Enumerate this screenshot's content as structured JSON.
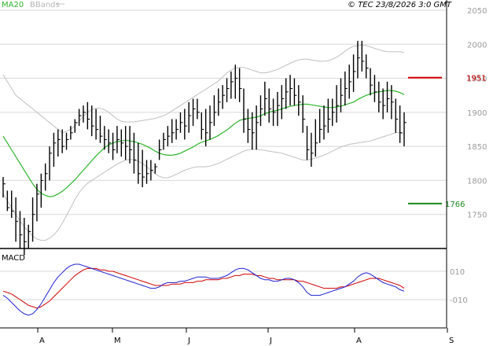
{
  "header": {
    "ma_label": "MA20",
    "bb_label": "BBands",
    "source": "© TEC 23/8/2026 3:0 GMT"
  },
  "colors": {
    "ma": "#2db52d",
    "bbands": "#c0c0c0",
    "price_bar": "#000000",
    "resistance": "#d00000",
    "support": "#1a8a1a",
    "macd_line": "#1f1fd6",
    "signal_line": "#d00000",
    "grid": "#d8d8d8"
  },
  "chart_data": [
    {
      "type": "ohlc",
      "ylim": [
        1700,
        2065
      ],
      "y_ticks": [
        1750,
        1800,
        1850,
        1900,
        1950,
        2000,
        2050
      ],
      "x_tick_labels": [
        "A",
        "M",
        "J",
        "J",
        "A",
        "S"
      ],
      "levels": {
        "resistance": 1951,
        "support": 1766
      },
      "highs": [
        1805,
        1785,
        1785,
        1775,
        1755,
        1745,
        1735,
        1775,
        1795,
        1810,
        1825,
        1850,
        1870,
        1875,
        1875,
        1870,
        1880,
        1890,
        1905,
        1910,
        1915,
        1910,
        1905,
        1895,
        1880,
        1875,
        1870,
        1880,
        1875,
        1880,
        1880,
        1870,
        1855,
        1845,
        1830,
        1830,
        1825,
        1860,
        1870,
        1880,
        1890,
        1890,
        1900,
        1905,
        1915,
        1920,
        1920,
        1900,
        1905,
        1910,
        1925,
        1935,
        1940,
        1950,
        1960,
        1970,
        1965,
        1935,
        1905,
        1900,
        1910,
        1925,
        1945,
        1935,
        1920,
        1930,
        1940,
        1950,
        1955,
        1950,
        1940,
        1925,
        1880,
        1870,
        1890,
        1905,
        1910,
        1920,
        1920,
        1940,
        1950,
        1960,
        1970,
        1985,
        2005,
        2005,
        1985,
        1965,
        1955,
        1945,
        1935,
        1945,
        1940,
        1920,
        1910,
        1900
      ],
      "lows": [
        1775,
        1755,
        1745,
        1710,
        1700,
        1690,
        1700,
        1710,
        1740,
        1760,
        1785,
        1800,
        1820,
        1835,
        1840,
        1845,
        1860,
        1870,
        1880,
        1885,
        1875,
        1865,
        1860,
        1855,
        1845,
        1840,
        1830,
        1840,
        1835,
        1830,
        1825,
        1810,
        1795,
        1790,
        1795,
        1800,
        1810,
        1830,
        1845,
        1850,
        1855,
        1860,
        1870,
        1860,
        1870,
        1880,
        1890,
        1860,
        1850,
        1860,
        1880,
        1895,
        1905,
        1915,
        1920,
        1920,
        1915,
        1870,
        1855,
        1845,
        1845,
        1880,
        1895,
        1885,
        1880,
        1880,
        1890,
        1905,
        1910,
        1910,
        1895,
        1870,
        1830,
        1820,
        1835,
        1855,
        1860,
        1870,
        1880,
        1885,
        1900,
        1910,
        1920,
        1930,
        1950,
        1960,
        1950,
        1925,
        1915,
        1900,
        1890,
        1900,
        1890,
        1870,
        1855,
        1850
      ],
      "closes": [
        1795,
        1760,
        1755,
        1740,
        1720,
        1710,
        1725,
        1750,
        1780,
        1800,
        1810,
        1840,
        1855,
        1860,
        1850,
        1860,
        1870,
        1885,
        1895,
        1900,
        1890,
        1880,
        1875,
        1865,
        1860,
        1855,
        1845,
        1860,
        1855,
        1850,
        1845,
        1830,
        1810,
        1805,
        1810,
        1815,
        1820,
        1845,
        1860,
        1865,
        1870,
        1875,
        1885,
        1880,
        1895,
        1905,
        1900,
        1875,
        1870,
        1885,
        1900,
        1915,
        1925,
        1935,
        1945,
        1950,
        1935,
        1890,
        1875,
        1870,
        1885,
        1905,
        1920,
        1905,
        1900,
        1910,
        1920,
        1930,
        1935,
        1925,
        1915,
        1890,
        1845,
        1840,
        1855,
        1875,
        1880,
        1890,
        1900,
        1910,
        1925,
        1935,
        1945,
        1960,
        1980,
        1975,
        1965,
        1940,
        1930,
        1915,
        1910,
        1920,
        1915,
        1890,
        1870,
        1885
      ],
      "ma20": [
        1865,
        1855,
        1845,
        1835,
        1825,
        1815,
        1805,
        1795,
        1787,
        1781,
        1778,
        1776,
        1777,
        1780,
        1784,
        1789,
        1795,
        1801,
        1808,
        1815,
        1822,
        1829,
        1836,
        1842,
        1848,
        1852,
        1855,
        1857,
        1858,
        1859,
        1858,
        1857,
        1855,
        1853,
        1850,
        1847,
        1843,
        1840,
        1838,
        1837,
        1837,
        1838,
        1840,
        1843,
        1846,
        1849,
        1853,
        1856,
        1858,
        1860,
        1863,
        1866,
        1870,
        1874,
        1879,
        1884,
        1888,
        1890,
        1891,
        1892,
        1893,
        1895,
        1898,
        1900,
        1902,
        1903,
        1905,
        1907,
        1909,
        1910,
        1911,
        1912,
        1912,
        1911,
        1910,
        1909,
        1908,
        1907,
        1907,
        1908,
        1909,
        1911,
        1913,
        1915,
        1919,
        1922,
        1925,
        1927,
        1929,
        1930,
        1931,
        1932,
        1932,
        1931,
        1929,
        1926
      ],
      "bb_upper": [
        1955,
        1945,
        1935,
        1925,
        1920,
        1915,
        1910,
        1905,
        1900,
        1895,
        1890,
        1885,
        1880,
        1875,
        1870,
        1872,
        1875,
        1880,
        1887,
        1894,
        1900,
        1904,
        1906,
        1906,
        1904,
        1900,
        1895,
        1890,
        1887,
        1886,
        1886,
        1886,
        1887,
        1888,
        1889,
        1890,
        1891,
        1893,
        1895,
        1898,
        1902,
        1906,
        1910,
        1914,
        1918,
        1922,
        1926,
        1930,
        1934,
        1938,
        1942,
        1946,
        1952,
        1958,
        1962,
        1965,
        1966,
        1966,
        1964,
        1962,
        1960,
        1958,
        1958,
        1959,
        1961,
        1963,
        1966,
        1969,
        1972,
        1975,
        1977,
        1978,
        1978,
        1977,
        1976,
        1975,
        1975,
        1976,
        1978,
        1981,
        1985,
        1990,
        1994,
        1997,
        1998,
        1999,
        1998,
        1996,
        1994,
        1992,
        1990,
        1989,
        1989,
        1989,
        1989,
        1988
      ],
      "bb_lower": [
        1780,
        1770,
        1760,
        1750,
        1740,
        1732,
        1725,
        1718,
        1714,
        1712,
        1712,
        1715,
        1720,
        1727,
        1737,
        1748,
        1760,
        1772,
        1782,
        1790,
        1796,
        1800,
        1804,
        1808,
        1812,
        1816,
        1820,
        1824,
        1827,
        1830,
        1831,
        1830,
        1828,
        1825,
        1820,
        1815,
        1810,
        1806,
        1804,
        1804,
        1806,
        1809,
        1812,
        1815,
        1817,
        1819,
        1820,
        1820,
        1820,
        1821,
        1823,
        1825,
        1828,
        1831,
        1834,
        1837,
        1840,
        1843,
        1845,
        1846,
        1846,
        1845,
        1844,
        1843,
        1842,
        1841,
        1840,
        1838,
        1836,
        1834,
        1832,
        1830,
        1830,
        1831,
        1833,
        1835,
        1837,
        1840,
        1843,
        1846,
        1849,
        1851,
        1853,
        1854,
        1855,
        1856,
        1857,
        1858,
        1860,
        1862,
        1864,
        1866,
        1868,
        1870,
        1870,
        1868
      ]
    },
    {
      "type": "line",
      "title": "MACD",
      "ylim": [
        -30,
        25
      ],
      "y_tick_labels": [
        "010",
        "-010"
      ],
      "y_tick_values": [
        10,
        -10
      ],
      "series": [
        {
          "values": [
            -7,
            -9,
            -12,
            -15,
            -18,
            -20,
            -21,
            -20,
            -17,
            -13,
            -8,
            -3,
            2,
            6,
            9,
            12,
            14,
            15,
            15,
            14,
            13,
            12,
            11,
            10,
            9,
            8,
            7,
            6,
            5,
            4,
            3,
            2,
            1,
            0,
            -1,
            -2,
            -2,
            -1,
            1,
            2,
            2,
            2,
            3,
            3,
            4,
            5,
            6,
            6,
            6,
            5,
            5,
            5,
            6,
            7,
            9,
            11,
            12,
            12,
            11,
            9,
            7,
            5,
            4,
            4,
            3,
            3,
            4,
            5,
            5,
            4,
            2,
            -1,
            -5,
            -7,
            -7,
            -7,
            -6,
            -5,
            -4,
            -3,
            -2,
            -1,
            1,
            3,
            6,
            8,
            9,
            8,
            6,
            4,
            2,
            1,
            0,
            -1,
            -3,
            -4
          ]
        },
        {
          "values": [
            -4,
            -5,
            -6,
            -8,
            -10,
            -12,
            -14,
            -15,
            -16,
            -15,
            -13,
            -11,
            -8,
            -5,
            -2,
            1,
            4,
            7,
            9,
            11,
            12,
            12,
            12,
            11,
            11,
            10,
            10,
            9,
            8,
            7,
            6,
            5,
            4,
            3,
            2,
            1,
            0,
            0,
            0,
            0,
            1,
            1,
            1,
            2,
            2,
            2,
            3,
            3,
            4,
            4,
            4,
            4,
            5,
            5,
            6,
            7,
            7,
            8,
            8,
            8,
            7,
            7,
            6,
            5,
            5,
            4,
            4,
            4,
            4,
            4,
            3,
            3,
            2,
            1,
            0,
            -1,
            -2,
            -2,
            -2,
            -2,
            -1,
            -1,
            0,
            1,
            2,
            3,
            4,
            5,
            5,
            5,
            4,
            3,
            2,
            1,
            0,
            -2
          ]
        }
      ]
    }
  ]
}
